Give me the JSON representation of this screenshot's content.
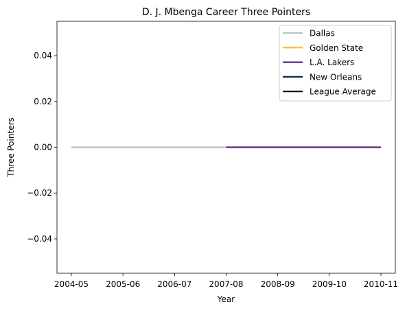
{
  "chart_data": {
    "type": "line",
    "title": "D. J. Mbenga Career Three Pointers",
    "xlabel": "Year",
    "ylabel": "Three Pointers",
    "categories": [
      "2004-05",
      "2005-06",
      "2006-07",
      "2007-08",
      "2008-09",
      "2009-10",
      "2010-11"
    ],
    "ylim": [
      -0.055,
      0.055
    ],
    "yticks": [
      0.04,
      0.02,
      0.0,
      -0.02,
      -0.04
    ],
    "ytick_labels": [
      "0.04",
      "0.02",
      "0.00",
      "−0.02",
      "−0.04"
    ],
    "grid": false,
    "legend_position": "top-right",
    "series": [
      {
        "name": "Dallas",
        "color": "#bfbfbf",
        "points": [
          {
            "x": "2004-05",
            "y": 0
          },
          {
            "x": "2007-08",
            "y": 0
          }
        ]
      },
      {
        "name": "Golden State",
        "color": "#fdb927",
        "points": []
      },
      {
        "name": "L.A. Lakers",
        "color": "#552583",
        "points": [
          {
            "x": "2007-08",
            "y": 0
          },
          {
            "x": "2010-11",
            "y": 0
          }
        ]
      },
      {
        "name": "New Orleans",
        "color": "#002b5c",
        "points": []
      },
      {
        "name": "League Average",
        "color": "#000000",
        "points": []
      }
    ]
  }
}
